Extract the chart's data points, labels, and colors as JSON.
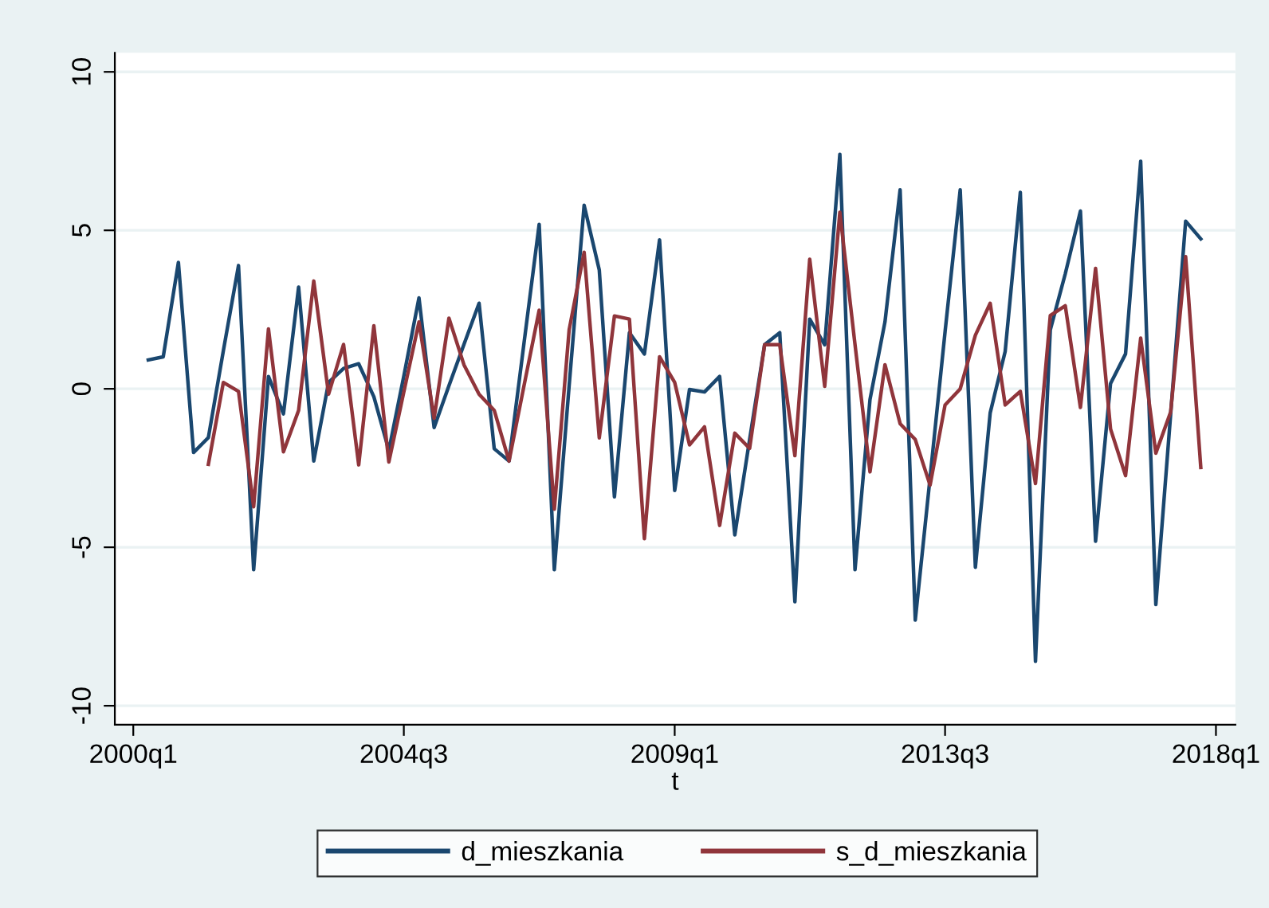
{
  "chart_data": {
    "type": "line",
    "xlabel": "t",
    "x": [
      "2000-04",
      "2000-07",
      "2000-10",
      "2001-01",
      "2001-04",
      "2001-07",
      "2001-10",
      "2002-01",
      "2002-04",
      "2002-07",
      "2002-10",
      "2003-01",
      "2003-04",
      "2003-07",
      "2003-10",
      "2004-01",
      "2004-04",
      "2004-07",
      "2004-10",
      "2005-01",
      "2005-04",
      "2005-07",
      "2005-10",
      "2006-01",
      "2006-04",
      "2006-07",
      "2006-10",
      "2007-01",
      "2007-04",
      "2007-07",
      "2007-10",
      "2008-01",
      "2008-04",
      "2008-07",
      "2008-10",
      "2009-01",
      "2009-04",
      "2009-07",
      "2009-10",
      "2010-01",
      "2010-04",
      "2010-07",
      "2010-10",
      "2011-01",
      "2011-04",
      "2011-07",
      "2011-10",
      "2012-01",
      "2012-04",
      "2012-07",
      "2012-10",
      "2013-01",
      "2013-04",
      "2013-07",
      "2013-10",
      "2014-01",
      "2014-04",
      "2014-07",
      "2014-10",
      "2015-01",
      "2015-04",
      "2015-07",
      "2015-10",
      "2016-01",
      "2016-04",
      "2016-07",
      "2016-10",
      "2017-01",
      "2017-04",
      "2017-07",
      "2017-10"
    ],
    "series": [
      {
        "name": "d_mieszkania",
        "color": "#1a476f",
        "values": [
          0.91,
          1.01,
          3.99,
          -2.01,
          -1.54,
          1.2,
          3.89,
          -5.71,
          0.39,
          -0.79,
          3.21,
          -2.28,
          0.2,
          0.64,
          0.79,
          -0.25,
          -1.94,
          0.4,
          2.87,
          -1.22,
          0.1,
          1.4,
          2.7,
          -1.89,
          -2.28,
          1.45,
          5.19,
          -5.71,
          0.1,
          5.79,
          3.75,
          -3.41,
          1.77,
          1.1,
          4.7,
          -3.21,
          -0.02,
          -0.1,
          0.39,
          -4.61,
          -1.6,
          1.39,
          1.77,
          -6.72,
          2.2,
          1.39,
          7.4,
          -5.71,
          -0.34,
          2.11,
          6.28,
          -7.3,
          -2.8,
          1.8,
          6.28,
          -5.63,
          -0.76,
          1.18,
          6.2,
          -8.6,
          1.86,
          3.63,
          5.61,
          -4.81,
          0.17,
          1.1,
          7.18,
          -6.81,
          -0.8,
          5.29,
          4.73
        ]
      },
      {
        "name": "s_d_mieszkania",
        "color": "#90353b",
        "values": [
          null,
          null,
          null,
          null,
          -2.38,
          0.2,
          -0.08,
          -3.72,
          1.89,
          -1.99,
          -0.68,
          3.4,
          -0.17,
          1.4,
          -2.4,
          1.99,
          -2.31,
          -0.1,
          2.11,
          -0.93,
          2.23,
          0.76,
          -0.17,
          -0.68,
          -2.28,
          0.1,
          2.48,
          -3.8,
          1.86,
          4.31,
          -1.55,
          2.3,
          2.2,
          -4.73,
          1.01,
          0.2,
          -1.77,
          -1.2,
          -4.31,
          -1.4,
          -1.88,
          1.39,
          1.39,
          -2.11,
          4.09,
          0.08,
          5.57,
          1.4,
          -2.62,
          0.76,
          -1.1,
          -1.6,
          -3.04,
          -0.51,
          0.0,
          1.69,
          2.7,
          -0.51,
          -0.08,
          -2.99,
          2.31,
          2.62,
          -0.59,
          3.8,
          -1.27,
          -2.74,
          1.6,
          -2.03,
          -0.73,
          4.17,
          -2.48
        ]
      }
    ],
    "xlim": [
      "1999-09-11",
      "2018-04-29"
    ],
    "xticks": [
      {
        "value": "2000-01",
        "label": "2000q1"
      },
      {
        "value": "2004-07",
        "label": "2004q3"
      },
      {
        "value": "2009-01",
        "label": "2009q1"
      },
      {
        "value": "2013-07",
        "label": "2013q3"
      },
      {
        "value": "2018-01",
        "label": "2018q1"
      }
    ],
    "ylim": [
      -10.6,
      10.6
    ],
    "yticks": [
      -10,
      -5,
      0,
      5,
      10
    ],
    "grid": "y",
    "legend": "bottom",
    "line_style": "solid"
  }
}
